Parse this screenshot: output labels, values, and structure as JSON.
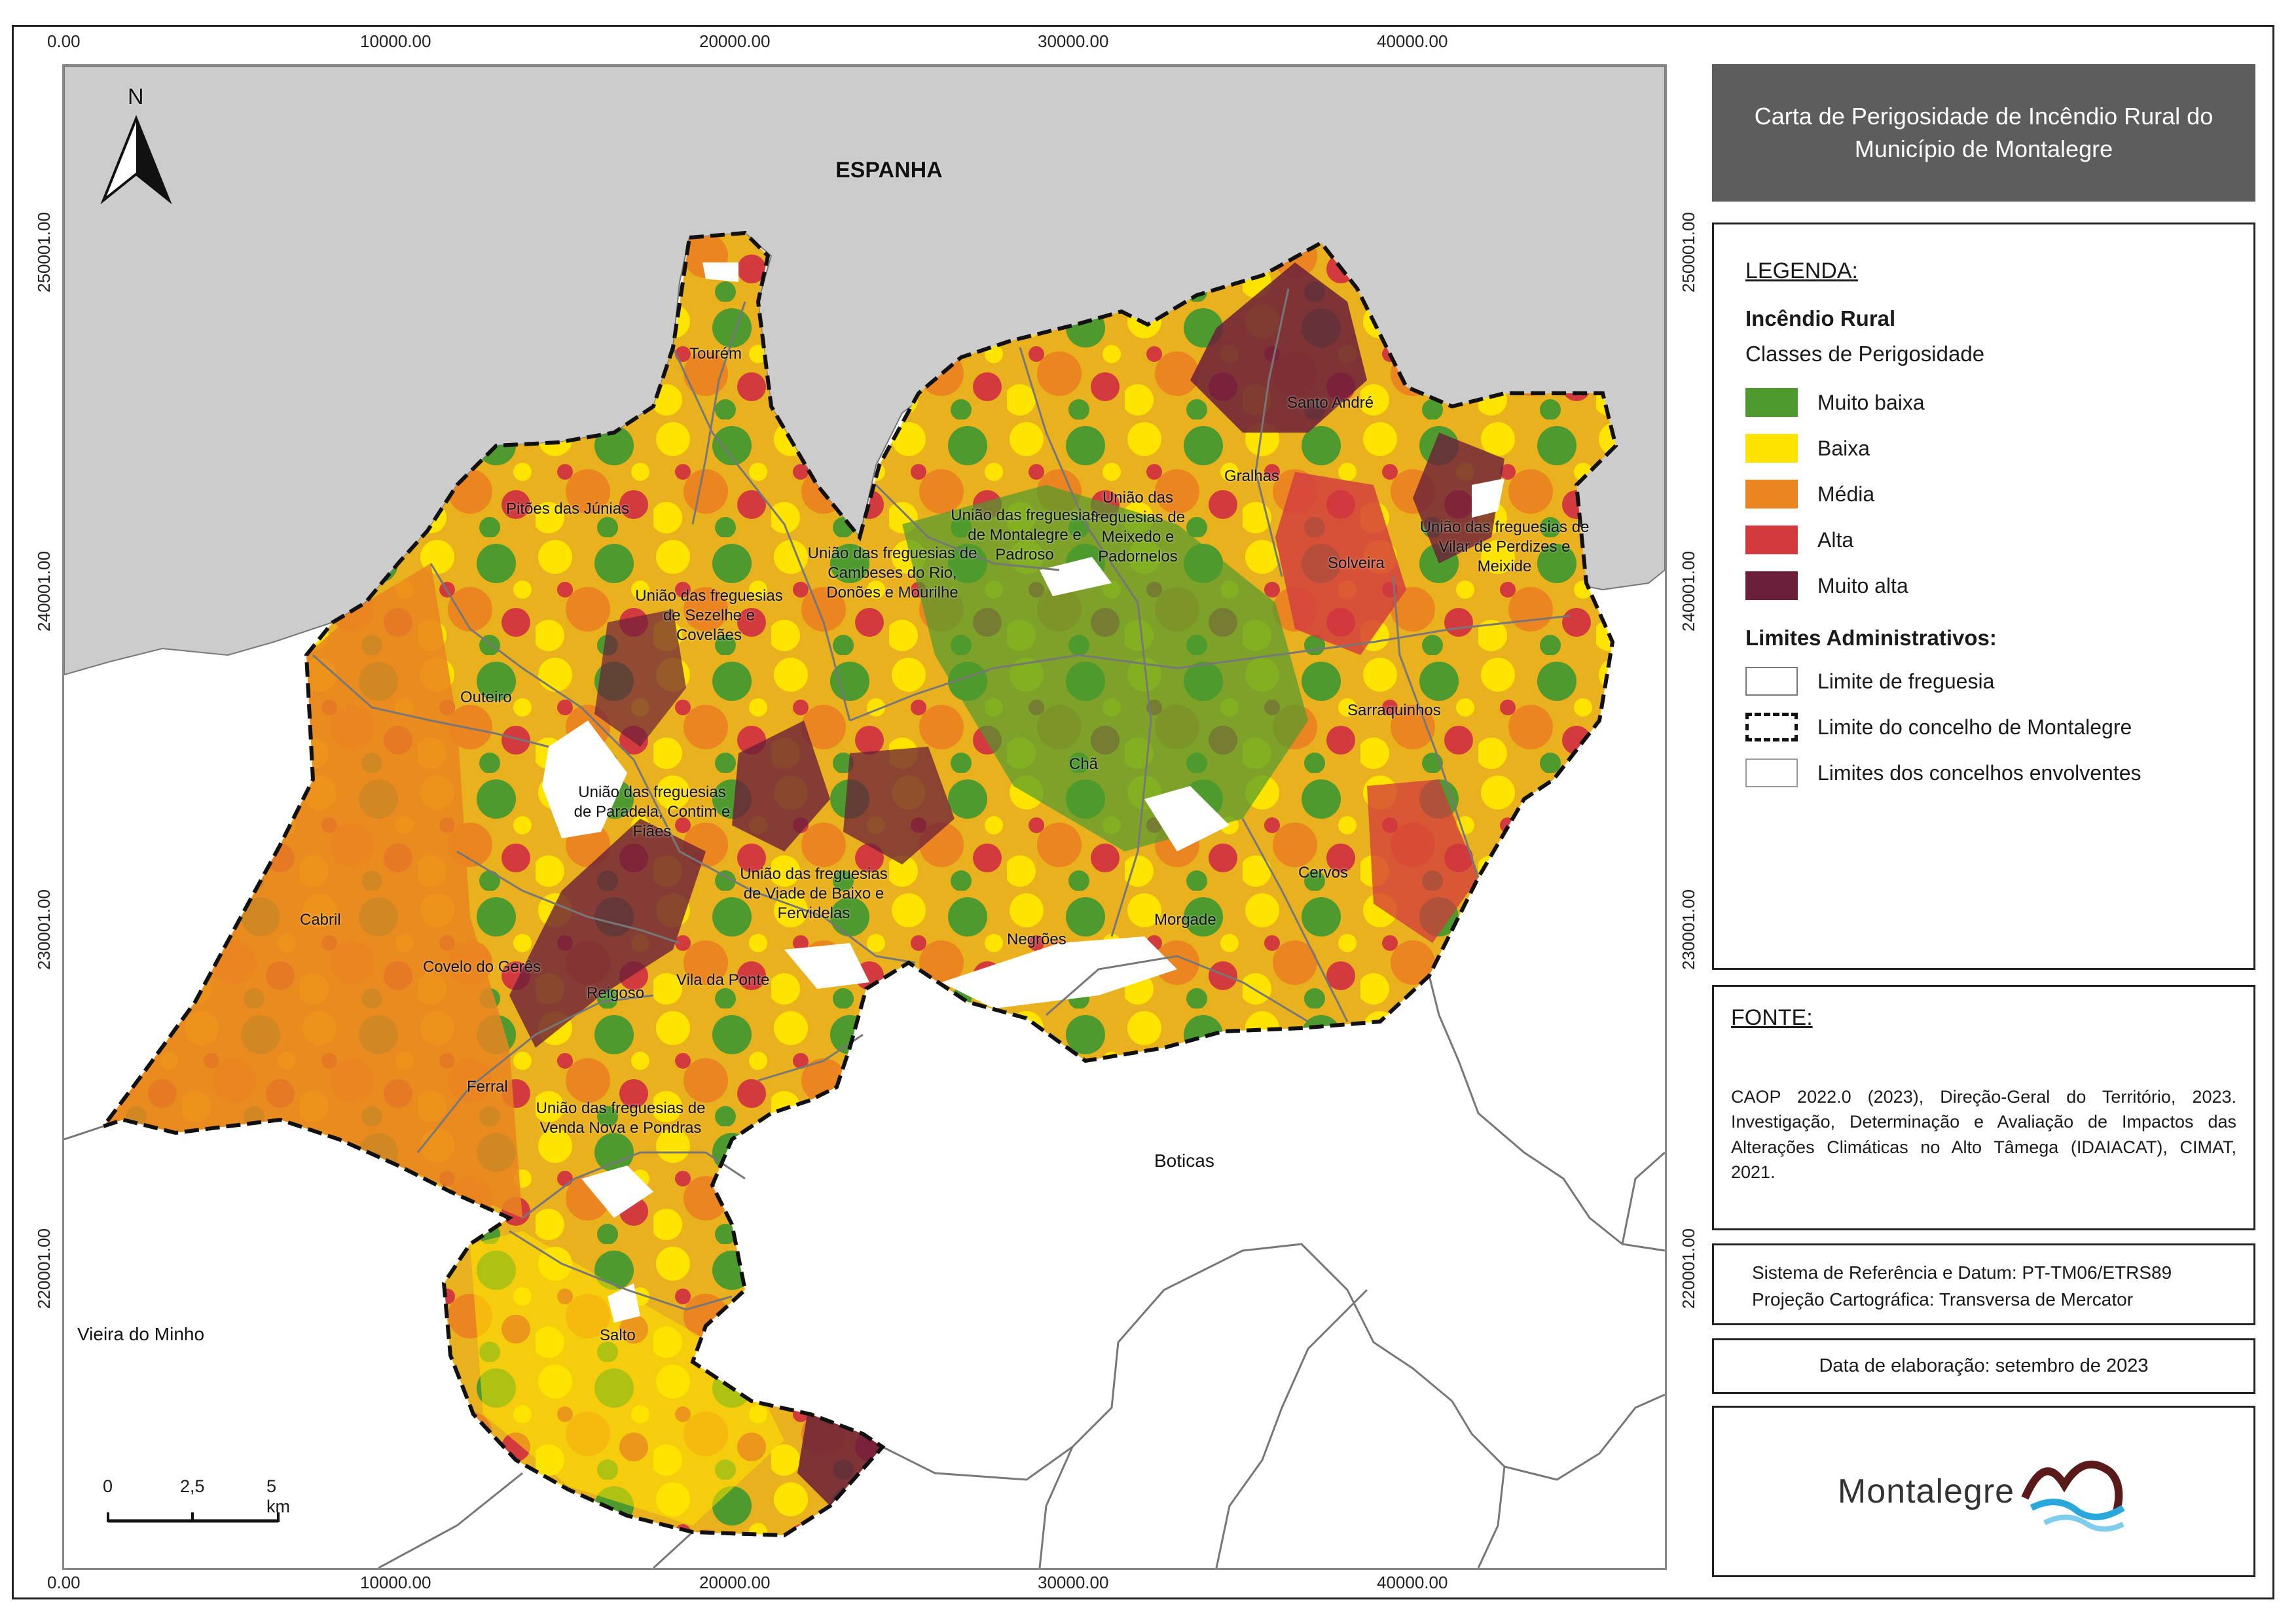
{
  "map": {
    "title_line1": "Carta de Perigosidade de Incêndio Rural do",
    "title_line2": "Município de Montalegre",
    "x_ticks": [
      "0.00",
      "10000.00",
      "20000.00",
      "30000.00",
      "40000.00"
    ],
    "y_ticks": [
      "250001.00",
      "240001.00",
      "230001.00",
      "220001.00"
    ],
    "north_label": "N",
    "neighbor_labels": {
      "espanha": "ESPANHA",
      "boticas": "Boticas",
      "vieira": "Vieira do Minho"
    },
    "parishes": [
      {
        "name": "Tourém"
      },
      {
        "name": "Pitões das Júnias"
      },
      {
        "name": "União das freguesias de Sezelhe e Covelães"
      },
      {
        "name": "União das freguesias de Cambeses do Rio, Donões e Mourilhe"
      },
      {
        "name": "União das freguesias de Montalegre e Padroso"
      },
      {
        "name": "União das freguesias de Meixedo e Padornelos"
      },
      {
        "name": "Santo André"
      },
      {
        "name": "Gralhas"
      },
      {
        "name": "Solveira"
      },
      {
        "name": "União das freguesias de Vilar de Perdizes e Meixide"
      },
      {
        "name": "Outeiro"
      },
      {
        "name": "União das freguesias de Paradela, Contim e Fiães"
      },
      {
        "name": "Chã"
      },
      {
        "name": "Sarraquinhos"
      },
      {
        "name": "Cervos"
      },
      {
        "name": "União das freguesias de Viade de Baixo e Fervidelas"
      },
      {
        "name": "Cabril"
      },
      {
        "name": "Negrões"
      },
      {
        "name": "Morgade"
      },
      {
        "name": "Covelo do Gerês"
      },
      {
        "name": "Reigoso"
      },
      {
        "name": "Vila da Ponte"
      },
      {
        "name": "Ferral"
      },
      {
        "name": "União das freguesias de Venda Nova e Pondras"
      },
      {
        "name": "Salto"
      }
    ],
    "scale": {
      "labels": [
        "0",
        "2,5",
        "5 km"
      ]
    }
  },
  "legend": {
    "heading": "LEGENDA:",
    "section1": "Incêndio Rural",
    "section1_sub": "Classes de Perigosidade",
    "classes": [
      {
        "label": "Muito baixa",
        "color": "#4e9a2e"
      },
      {
        "label": "Baixa",
        "color": "#ffe400"
      },
      {
        "label": "Média",
        "color": "#ea8520"
      },
      {
        "label": "Alta",
        "color": "#d23a3e"
      },
      {
        "label": "Muito alta",
        "color": "#6b1f3a"
      }
    ],
    "section2": "Limites Administrativos:",
    "limits": [
      {
        "label": "Limite de freguesia"
      },
      {
        "label": "Limite do concelho de Montalegre"
      },
      {
        "label": "Limites dos concelhos envolventes"
      }
    ]
  },
  "fonte": {
    "heading": "FONTE:",
    "text": "CAOP 2022.0 (2023), Direção-Geral do Território, 2023. Investigação, Determinação e Avaliação de Impactos das Alterações Climáticas no Alto Tâmega (IDAIACAT), CIMAT, 2021."
  },
  "srs": {
    "line1": "Sistema de Referência e Datum: PT-TM06/ETRS89",
    "line2": "Projeção Cartográfica: Transversa de Mercator"
  },
  "date_text": "Data de elaboração: setembro de 2023",
  "logo_text": "Montalegre",
  "colors": {
    "spain": "#cccccc",
    "title_bg": "#5d5d5d",
    "logo_wave_blue": "#2aa8dc",
    "logo_wave_dark": "#5a1a1a"
  }
}
